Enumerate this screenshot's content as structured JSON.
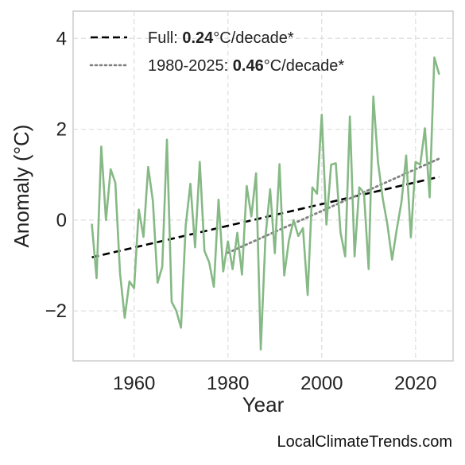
{
  "chart_data": {
    "type": "line",
    "xlabel": "Year",
    "ylabel": "Anomaly (°C)",
    "xlim": [
      1947,
      2028
    ],
    "ylim": [
      -3.1,
      4.6
    ],
    "xticks": [
      1960,
      1980,
      2000,
      2020
    ],
    "yticks": [
      -2,
      0,
      2,
      4
    ],
    "ytick_labels": [
      "−2",
      "0",
      "2",
      "4"
    ],
    "grid": true,
    "legend_position": "top-left",
    "colors": {
      "anomaly": "#86b985",
      "full_trend": "#000000",
      "recent_trend": "#808080",
      "grid": "#dddddd",
      "frame": "#cccccc"
    },
    "series": [
      {
        "x": [
          1951,
          1952,
          1953,
          1954,
          1955,
          1956,
          1957,
          1958,
          1959,
          1960,
          1961,
          1962,
          1963,
          1964,
          1965,
          1966,
          1967,
          1968,
          1969,
          1970,
          1971,
          1972,
          1973,
          1974,
          1975,
          1976,
          1977,
          1978,
          1979,
          1980,
          1981,
          1982,
          1983,
          1984,
          1985,
          1986,
          1987,
          1988,
          1989,
          1990,
          1991,
          1992,
          1993,
          1994,
          1995,
          1996,
          1997,
          1998,
          1999,
          2000,
          2001,
          2002,
          2003,
          2004,
          2005,
          2006,
          2007,
          2008,
          2009,
          2010,
          2011,
          2012,
          2013,
          2014,
          2015,
          2016,
          2017,
          2018,
          2019,
          2020,
          2021,
          2022,
          2023,
          2024,
          2025
        ],
        "values": [
          -0.1,
          -1.28,
          1.62,
          0.0,
          1.12,
          0.82,
          -1.17,
          -2.15,
          -1.35,
          -1.5,
          0.23,
          -0.37,
          1.17,
          0.42,
          -1.38,
          -1.03,
          1.77,
          -1.8,
          -2.0,
          -2.37,
          -0.12,
          0.8,
          -0.6,
          1.28,
          -0.68,
          -0.93,
          -1.47,
          0.45,
          -1.13,
          -0.47,
          -1.08,
          -0.28,
          -1.2,
          0.75,
          0.08,
          1.03,
          -2.85,
          -0.38,
          0.68,
          -0.73,
          1.23,
          -1.22,
          -0.45,
          0.0,
          -0.35,
          -0.18,
          -1.65,
          0.72,
          0.58,
          2.32,
          -0.1,
          1.22,
          1.25,
          -0.27,
          -0.8,
          2.28,
          -0.8,
          0.72,
          0.6,
          -1.08,
          2.72,
          1.27,
          0.48,
          -0.1,
          -0.87,
          -0.2,
          0.4,
          1.42,
          -0.38,
          1.28,
          1.22,
          2.02,
          0.5,
          3.58,
          3.22
        ]
      },
      {
        "name": "Full:",
        "x": [
          1951,
          2025
        ],
        "values": [
          -0.82,
          0.95
        ]
      },
      {
        "name": "1980-2025:",
        "x": [
          1980,
          2025
        ],
        "values": [
          -0.72,
          1.35
        ]
      }
    ],
    "legend": [
      {
        "prefix": "Full: ",
        "value": "0.24",
        "suffix": "°C/decade*",
        "style": "dashed"
      },
      {
        "prefix": "1980-2025: ",
        "value": "0.46",
        "suffix": "°C/decade*",
        "style": "dotted"
      }
    ]
  },
  "watermark": "LocalClimateTrends.com"
}
